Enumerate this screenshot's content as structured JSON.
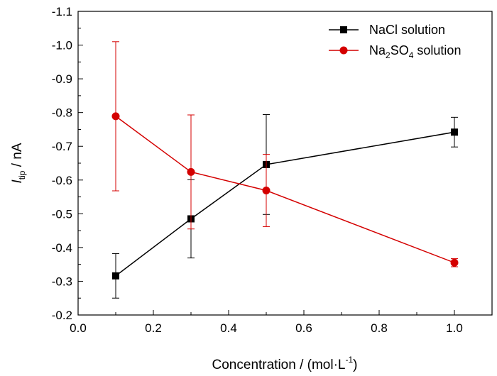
{
  "chart_data": {
    "type": "line",
    "xlabel": {
      "main": "Concentration / (mol·L",
      "sup": "-1",
      "close": ")"
    },
    "ylabel": {
      "symbol": "I",
      "sub": "tip",
      "rest": " / nA"
    },
    "xlim": [
      0.0,
      1.1
    ],
    "ylim": [
      -1.1,
      -0.2
    ],
    "y_axis_inverted": true,
    "x_ticks": [
      0.0,
      0.2,
      0.4,
      0.6,
      0.8,
      1.0
    ],
    "x_tick_labels": [
      "0.0",
      "0.2",
      "0.4",
      "0.6",
      "0.8",
      "1.0"
    ],
    "y_ticks": [
      -1.1,
      -1.0,
      -0.9,
      -0.8,
      -0.7,
      -0.6,
      -0.5,
      -0.4,
      -0.3,
      -0.2
    ],
    "y_tick_labels": [
      "-1.1",
      "-1.0",
      "-0.9",
      "-0.8",
      "-0.7",
      "-0.6",
      "-0.5",
      "-0.4",
      "-0.3",
      "-0.2"
    ],
    "grid": false,
    "legend_position": "top-right",
    "series": [
      {
        "name": "NaCl solution",
        "legend_parts": [
          {
            "text": "NaCl solution",
            "sub": false
          }
        ],
        "color": "#000000",
        "marker": "square",
        "x": [
          0.1,
          0.3,
          0.5,
          1.0
        ],
        "y": [
          -0.316,
          -0.485,
          -0.646,
          -0.742
        ],
        "error": [
          0.066,
          0.116,
          0.148,
          0.044
        ]
      },
      {
        "name": "Na2SO4 solution",
        "legend_parts": [
          {
            "text": "Na",
            "sub": false
          },
          {
            "text": "2",
            "sub": true
          },
          {
            "text": "SO",
            "sub": false
          },
          {
            "text": "4",
            "sub": true
          },
          {
            "text": " solution",
            "sub": false
          }
        ],
        "color": "#d40000",
        "marker": "circle",
        "x": [
          0.1,
          0.3,
          0.5,
          1.0
        ],
        "y": [
          -0.789,
          -0.624,
          -0.569,
          -0.355
        ],
        "error": [
          0.221,
          0.169,
          0.107,
          0.012
        ]
      }
    ]
  }
}
